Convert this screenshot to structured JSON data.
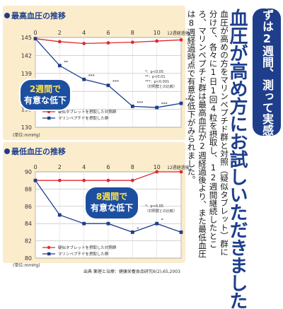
{
  "banner": "まずは2週間、測って実感！",
  "headline": "血圧が高め方にお試しいただきました",
  "body_text": "血圧が高めの方をマリンペプチド群と対照（疑似タブレット）群に分けて、各々に1日1回4粒を摂取し、12週間継続したところ、マリンペプチド群は最高血圧が2週経過後より、また最低血圧は8週経過時点で有意な低下がみられました。",
  "source": "出典 薬理と治療：健康栄養食品研究6(2),65,2003",
  "colors": {
    "accent": "#1e3e8c",
    "control": "#e0282e",
    "peptide": "#1e3e8c",
    "panel": "#fbeccc",
    "callout": "#1d4fa0"
  },
  "chart_data": [
    {
      "type": "line",
      "title": "最高血圧の推移",
      "xlabel": "週経過後",
      "ylabel": "(単位:mmHg)",
      "x": [
        0,
        2,
        4,
        6,
        8,
        10,
        12
      ],
      "x_ticks": [
        "0",
        "2",
        "4",
        "6",
        "8",
        "10",
        "12週経過後"
      ],
      "ylim": [
        130,
        145
      ],
      "y_ticks": [
        130,
        133,
        136,
        139,
        142,
        145
      ],
      "grid": true,
      "legend": "bottom-left",
      "series": [
        {
          "name": "疑似タブレットを摂取した対照群",
          "color": "#e0282e",
          "marker": "circle",
          "values": [
            144.8,
            144.3,
            144.0,
            144.1,
            144.2,
            144.4,
            144.6
          ]
        },
        {
          "name": "マリンペプチドを摂取した群",
          "color": "#1e3e8c",
          "marker": "square",
          "values": [
            144.8,
            140.3,
            138.0,
            137.0,
            133.5,
            133.3,
            134.0
          ]
        }
      ],
      "significance": [
        {
          "x": 2,
          "label": "**"
        },
        {
          "x": 4,
          "label": "***"
        },
        {
          "x": 6,
          "label": "***"
        },
        {
          "x": 8,
          "label": "***"
        },
        {
          "x": 10,
          "label": "***"
        },
        {
          "x": 12,
          "label": "***"
        }
      ],
      "significance_legend": [
        "*：p<0.05",
        "**：p<0.01",
        "***：p<0.001",
        "（対照群との比較）"
      ],
      "callout": [
        "2週間で",
        "有意な低下"
      ]
    },
    {
      "type": "line",
      "title": "最低血圧の推移",
      "xlabel": "週経過後",
      "ylabel": "(単位:mmHg)",
      "x": [
        0,
        2,
        4,
        6,
        8,
        10,
        12
      ],
      "x_ticks": [
        "0",
        "2",
        "4",
        "6",
        "8",
        "10",
        "12週経過後"
      ],
      "ylim": [
        80,
        90
      ],
      "y_ticks": [
        80,
        82,
        84,
        86,
        88,
        90
      ],
      "grid": true,
      "legend": "bottom-left",
      "series": [
        {
          "name": "疑似タブレットを摂取した対照群",
          "color": "#e0282e",
          "marker": "circle",
          "values": [
            89.0,
            89.0,
            89.0,
            89.0,
            89.0,
            90.0,
            90.0
          ]
        },
        {
          "name": "マリンペプチドを摂取した群",
          "color": "#1e3e8c",
          "marker": "square",
          "values": [
            89.0,
            85.0,
            84.0,
            84.0,
            83.0,
            84.0,
            83.0
          ]
        }
      ],
      "significance": [
        {
          "x": 8,
          "label": "*"
        },
        {
          "x": 10,
          "label": "*"
        }
      ],
      "significance_legend": [
        "*：p<0.05",
        "（対照群との比較）"
      ],
      "callout": [
        "8週間で",
        "有意な低下"
      ]
    }
  ]
}
